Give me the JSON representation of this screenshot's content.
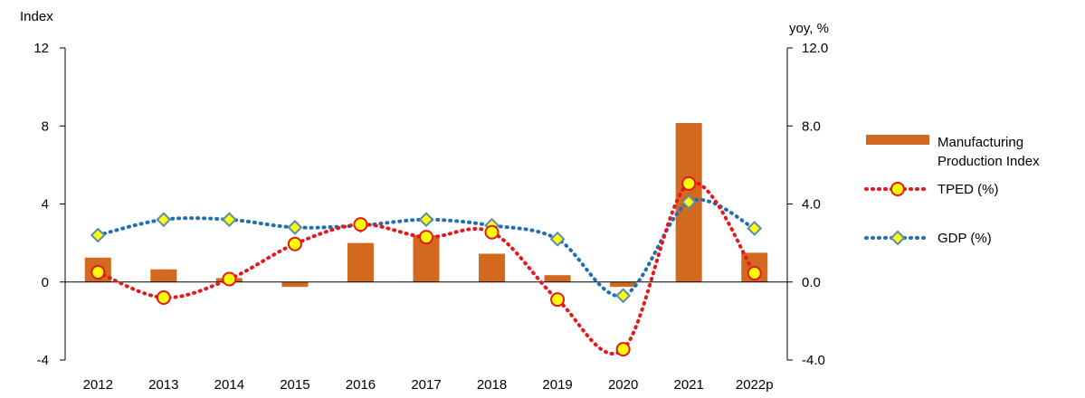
{
  "chart_data": {
    "type": "bar",
    "categories": [
      "2012",
      "2013",
      "2014",
      "2015",
      "2016",
      "2017",
      "2018",
      "2019",
      "2020",
      "2021",
      "2022p"
    ],
    "y_left": {
      "label": "Index",
      "ylim": [
        -4,
        12
      ],
      "ticks": [
        "-4",
        "0",
        "4",
        "8",
        "12"
      ]
    },
    "y_right": {
      "label": "yoy, %",
      "ylim": [
        -4.0,
        12.0
      ],
      "ticks": [
        "-4.0",
        "0.0",
        "4.0",
        "8.0",
        "12.0"
      ]
    },
    "series": [
      {
        "name": "Manufacturing Production Index",
        "name_lines": [
          "Manufacturing",
          "Production Index"
        ],
        "type": "bar",
        "axis": "left",
        "color": "#d2691e",
        "values": [
          1.25,
          0.65,
          0.2,
          -0.25,
          2.0,
          2.4,
          1.45,
          0.35,
          -0.25,
          8.15,
          1.5
        ]
      },
      {
        "name": "TPED (%)",
        "type": "line",
        "style": "dotted",
        "marker": "circle",
        "axis": "right",
        "color": "#e8161a",
        "marker_fill": "#ffff00",
        "values": [
          0.5,
          -0.8,
          0.15,
          1.95,
          2.95,
          2.3,
          2.55,
          -0.9,
          -3.45,
          5.05,
          0.45
        ]
      },
      {
        "name": "GDP (%)",
        "type": "line",
        "style": "dotted",
        "marker": "diamond",
        "axis": "right",
        "color": "#1f6fb4",
        "marker_fill": "#ffff00",
        "values": [
          2.4,
          3.2,
          3.2,
          2.8,
          2.9,
          3.2,
          2.9,
          2.2,
          -0.7,
          4.1,
          2.75
        ]
      }
    ],
    "grid": false,
    "legend_position": "right"
  }
}
